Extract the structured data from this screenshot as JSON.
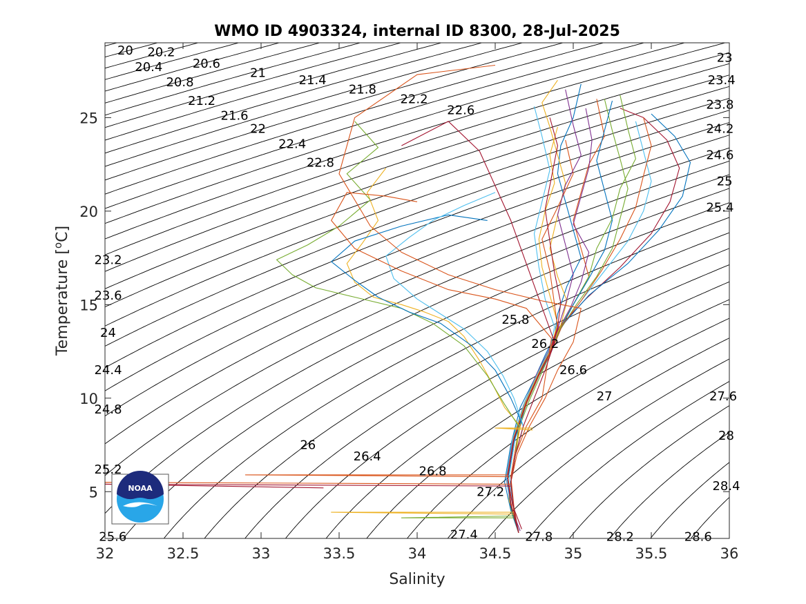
{
  "chart_data": {
    "type": "line",
    "title": "WMO ID 4903324, internal ID 8300, 28-Jul-2025",
    "xlabel": "Salinity",
    "ylabel": "Temperature [",
    "ylabel_sup": "o",
    "ylabel_suffix": "C]",
    "xlim": [
      32,
      36
    ],
    "ylim": [
      2.5,
      29
    ],
    "x_ticks": [
      32,
      32.5,
      33,
      33.5,
      34,
      34.5,
      35,
      35.5,
      36
    ],
    "x_tick_labels": [
      "32",
      "32.5",
      "33",
      "33.5",
      "34",
      "34.5",
      "35",
      "35.5",
      "36"
    ],
    "y_ticks": [
      5,
      10,
      15,
      20,
      25
    ],
    "y_tick_labels": [
      "5",
      "10",
      "15",
      "20",
      "25"
    ],
    "grid": false,
    "density_isolines": {
      "range": [
        19.5,
        29.0
      ],
      "step": 0.2,
      "color": "#000000"
    },
    "isoline_labels": [
      {
        "text": "20",
        "S": 32.13,
        "T": 28.6
      },
      {
        "text": "20.2",
        "S": 32.36,
        "T": 28.5
      },
      {
        "text": "20.4",
        "S": 32.28,
        "T": 27.7
      },
      {
        "text": "20.6",
        "S": 32.65,
        "T": 27.9
      },
      {
        "text": "20.8",
        "S": 32.48,
        "T": 26.9
      },
      {
        "text": "21",
        "S": 32.98,
        "T": 27.4
      },
      {
        "text": "21.2",
        "S": 32.62,
        "T": 25.9
      },
      {
        "text": "21.4",
        "S": 33.33,
        "T": 27.0
      },
      {
        "text": "21.6",
        "S": 32.83,
        "T": 25.1
      },
      {
        "text": "21.8",
        "S": 33.65,
        "T": 26.5
      },
      {
        "text": "22",
        "S": 32.98,
        "T": 24.4
      },
      {
        "text": "22.2",
        "S": 33.98,
        "T": 26.0
      },
      {
        "text": "22.4",
        "S": 33.2,
        "T": 23.6
      },
      {
        "text": "22.6",
        "S": 34.28,
        "T": 25.4
      },
      {
        "text": "22.8",
        "S": 33.38,
        "T": 22.6
      },
      {
        "text": "23",
        "S": 35.97,
        "T": 28.2
      },
      {
        "text": "23.2",
        "S": 32.02,
        "T": 17.4
      },
      {
        "text": "23.4",
        "S": 35.95,
        "T": 27.0
      },
      {
        "text": "23.6",
        "S": 32.02,
        "T": 15.5
      },
      {
        "text": "23.8",
        "S": 35.94,
        "T": 25.7
      },
      {
        "text": "24",
        "S": 32.02,
        "T": 13.5
      },
      {
        "text": "24.2",
        "S": 35.94,
        "T": 24.4
      },
      {
        "text": "24.4",
        "S": 32.02,
        "T": 11.5
      },
      {
        "text": "24.6",
        "S": 35.94,
        "T": 23.0
      },
      {
        "text": "24.8",
        "S": 32.02,
        "T": 9.4
      },
      {
        "text": "25",
        "S": 35.97,
        "T": 21.6
      },
      {
        "text": "25.2",
        "S": 32.02,
        "T": 6.2
      },
      {
        "text": "25.4",
        "S": 35.94,
        "T": 20.2
      },
      {
        "text": "25.6",
        "S": 32.05,
        "T": 2.6
      },
      {
        "text": "25.8",
        "S": 34.63,
        "T": 14.2
      },
      {
        "text": "26",
        "S": 33.3,
        "T": 7.5
      },
      {
        "text": "26.2",
        "S": 34.82,
        "T": 12.9
      },
      {
        "text": "26.4",
        "S": 33.68,
        "T": 6.9
      },
      {
        "text": "26.6",
        "S": 35.0,
        "T": 11.5
      },
      {
        "text": "26.8",
        "S": 34.1,
        "T": 6.1
      },
      {
        "text": "27",
        "S": 35.2,
        "T": 10.1
      },
      {
        "text": "27.2",
        "S": 34.47,
        "T": 5.0
      },
      {
        "text": "27.4",
        "S": 34.3,
        "T": 2.7
      },
      {
        "text": "27.6",
        "S": 35.96,
        "T": 10.1
      },
      {
        "text": "27.8",
        "S": 34.78,
        "T": 2.6
      },
      {
        "text": "28",
        "S": 35.98,
        "T": 8.0
      },
      {
        "text": "28.2",
        "S": 35.3,
        "T": 2.6
      },
      {
        "text": "28.4",
        "S": 35.98,
        "T": 5.3
      },
      {
        "text": "28.6",
        "S": 35.8,
        "T": 2.6
      }
    ],
    "series": [
      {
        "color": "#0072BD",
        "S": [
          34.65,
          34.6,
          34.56,
          34.6,
          34.66,
          34.75,
          34.82,
          34.88,
          34.9,
          34.96,
          35.05,
          35.0,
          34.95,
          34.9,
          34.92,
          35.0,
          35.05
        ],
        "T": [
          2.8,
          4.0,
          5.5,
          7.5,
          9.5,
          11.0,
          12.3,
          13.3,
          14.5,
          16.0,
          17.5,
          19.0,
          20.5,
          22.0,
          23.5,
          25.0,
          26.8
        ]
      },
      {
        "color": "#D95319",
        "S": [
          34.65,
          34.62,
          34.6,
          34.64,
          34.7,
          34.78,
          34.85,
          34.92,
          35.0,
          35.1,
          35.05,
          35.0,
          35.05,
          35.1,
          35.2,
          35.15
        ],
        "T": [
          2.8,
          4.2,
          5.8,
          7.8,
          9.8,
          11.3,
          12.6,
          13.8,
          15.0,
          16.5,
          18.0,
          19.5,
          21.0,
          22.5,
          24.0,
          26.0
        ]
      },
      {
        "color": "#EDB120",
        "S": [
          34.65,
          34.59,
          34.58,
          34.62,
          34.7,
          34.8,
          34.86,
          34.9,
          34.85,
          34.8,
          34.78,
          34.82,
          34.88,
          34.85,
          34.9
        ],
        "T": [
          2.8,
          4.5,
          6.0,
          8.0,
          10.0,
          11.5,
          12.8,
          14.0,
          15.5,
          17.0,
          18.5,
          20.0,
          21.5,
          23.0,
          24.5
        ]
      },
      {
        "color": "#7E2F8E",
        "S": [
          34.65,
          34.6,
          34.57,
          34.61,
          34.68,
          34.76,
          34.84,
          34.9,
          34.98,
          35.05,
          35.1,
          35.0,
          35.05,
          35.1,
          35.12,
          35.08
        ],
        "T": [
          2.9,
          4.3,
          5.7,
          7.6,
          9.6,
          11.2,
          12.5,
          13.6,
          14.8,
          16.2,
          17.8,
          19.3,
          20.8,
          22.3,
          23.8,
          25.5
        ]
      },
      {
        "color": "#77AC30",
        "S": [
          34.65,
          34.6,
          34.58,
          34.62,
          34.72,
          34.8,
          34.87,
          34.92,
          35.02,
          35.15,
          35.25,
          35.3,
          35.35,
          35.3,
          35.25,
          35.2
        ],
        "T": [
          2.8,
          4.1,
          5.6,
          7.7,
          9.9,
          11.4,
          12.7,
          13.7,
          15.0,
          16.5,
          18.0,
          19.6,
          21.2,
          22.8,
          24.3,
          26.0
        ]
      },
      {
        "color": "#4DBEEE",
        "S": [
          34.65,
          34.61,
          34.59,
          34.63,
          34.71,
          34.79,
          34.86,
          34.93,
          35.05,
          35.2,
          35.35,
          35.45,
          35.5,
          35.45,
          35.4
        ],
        "T": [
          2.8,
          4.4,
          5.9,
          7.9,
          9.9,
          11.4,
          12.7,
          13.9,
          15.2,
          16.8,
          18.4,
          20.0,
          21.6,
          23.2,
          24.8
        ]
      },
      {
        "color": "#A2142F",
        "S": [
          34.67,
          34.61,
          34.58,
          34.62,
          34.69,
          34.77,
          34.85,
          34.91,
          35.08,
          35.3,
          35.5,
          35.62,
          35.68,
          35.6,
          35.45,
          35.3
        ],
        "T": [
          3.0,
          4.3,
          5.8,
          7.8,
          9.8,
          11.3,
          12.6,
          13.8,
          15.3,
          17.0,
          18.8,
          20.5,
          22.3,
          23.8,
          25.0,
          25.5
        ]
      },
      {
        "color": "#0072BD",
        "S": [
          34.65,
          34.6,
          34.58,
          34.62,
          34.7,
          34.78,
          34.86,
          34.92,
          35.1,
          35.35,
          35.55,
          35.7,
          35.75,
          35.65,
          35.5
        ],
        "T": [
          2.8,
          4.2,
          5.7,
          7.7,
          9.7,
          11.2,
          12.6,
          13.8,
          15.5,
          17.2,
          19.0,
          20.8,
          22.6,
          24.0,
          25.2
        ]
      },
      {
        "color": "#D95319",
        "S": [
          34.65,
          34.6,
          34.57,
          34.61,
          34.69,
          34.77,
          34.85,
          34.9,
          34.88,
          34.85,
          34.8,
          34.9,
          35.0,
          34.95
        ],
        "T": [
          2.8,
          4.3,
          5.8,
          7.8,
          9.8,
          11.3,
          12.6,
          13.8,
          15.0,
          16.8,
          18.5,
          20.2,
          22.0,
          23.8
        ]
      },
      {
        "color": "#EDB120",
        "S": [
          34.65,
          34.6,
          34.58,
          34.62,
          34.7,
          34.78,
          34.86,
          34.92,
          34.96,
          34.9,
          34.85,
          34.9,
          34.95,
          34.9,
          34.85,
          34.8,
          34.9
        ],
        "T": [
          2.8,
          4.4,
          5.9,
          7.9,
          9.9,
          11.4,
          12.7,
          13.9,
          15.2,
          16.5,
          18.0,
          19.8,
          21.5,
          23.0,
          24.5,
          25.8,
          27.0
        ]
      },
      {
        "color": "#77AC30",
        "S": [
          34.65,
          34.6,
          34.58,
          34.62,
          34.7,
          34.78,
          34.86,
          34.92,
          35.0,
          35.1,
          35.15,
          35.25,
          35.3,
          35.4,
          35.35,
          35.3
        ],
        "T": [
          2.8,
          4.3,
          5.8,
          7.8,
          9.8,
          11.3,
          12.6,
          13.8,
          15.0,
          16.5,
          18.0,
          19.6,
          21.2,
          22.8,
          24.4,
          26.2
        ]
      },
      {
        "color": "#7E2F8E",
        "S": [
          34.66,
          34.6,
          34.58,
          34.62,
          34.7,
          34.78,
          34.86,
          34.9,
          34.95,
          35.0,
          34.95,
          34.9,
          34.95,
          35.05,
          35.0,
          34.95
        ],
        "T": [
          2.9,
          4.2,
          5.7,
          7.7,
          9.7,
          11.2,
          12.5,
          13.7,
          15.0,
          16.6,
          18.2,
          19.8,
          21.4,
          23.0,
          24.6,
          26.5
        ]
      },
      {
        "color": "#4DBEEE",
        "S": [
          34.65,
          34.6,
          34.57,
          34.61,
          34.69,
          34.77,
          34.85,
          34.88,
          34.82,
          34.78,
          34.75,
          34.8,
          34.85,
          34.8,
          34.75
        ],
        "T": [
          2.8,
          4.3,
          5.8,
          7.8,
          9.8,
          11.3,
          12.6,
          13.8,
          15.3,
          17.0,
          18.8,
          20.5,
          22.2,
          24.0,
          25.6
        ]
      },
      {
        "color": "#0072BD",
        "S": [
          34.65,
          34.6,
          34.58,
          34.62,
          34.7,
          34.78,
          34.86,
          34.92,
          35.0,
          35.1,
          35.2,
          35.25,
          35.2,
          35.15,
          35.2,
          35.25
        ],
        "T": [
          2.8,
          4.2,
          5.7,
          7.7,
          9.7,
          11.2,
          12.5,
          13.7,
          15.0,
          16.4,
          17.9,
          19.5,
          21.1,
          22.7,
          24.3,
          25.9
        ]
      },
      {
        "color": "#D95319",
        "S": [
          34.65,
          34.6,
          34.58,
          34.62,
          34.71,
          34.79,
          34.87,
          34.93,
          35.05,
          35.18,
          35.3,
          35.4,
          35.45,
          35.5,
          35.45
        ],
        "T": [
          2.8,
          4.4,
          5.9,
          7.9,
          9.9,
          11.4,
          12.7,
          13.9,
          15.2,
          16.8,
          18.5,
          20.2,
          21.9,
          23.5,
          25.0
        ]
      },
      {
        "color": "#A2142F",
        "S": [
          34.65,
          34.6,
          34.58,
          34.62,
          34.7,
          34.78,
          34.86,
          34.9,
          34.92,
          34.88,
          34.85,
          34.82,
          34.86,
          34.9,
          34.85
        ],
        "T": [
          2.8,
          4.3,
          5.8,
          7.8,
          9.8,
          11.3,
          12.6,
          13.8,
          15.1,
          16.7,
          18.4,
          20.1,
          21.8,
          23.5,
          25.0
        ]
      },
      {
        "color": "#EDB120",
        "S": [
          34.65,
          34.62,
          34.6,
          34.63,
          34.66,
          34.56,
          34.48,
          34.4,
          34.3,
          34.2,
          34.05,
          33.9,
          33.72,
          33.6,
          33.55,
          33.65,
          33.75,
          33.68,
          33.8
        ],
        "T": [
          2.8,
          4.0,
          5.5,
          7.0,
          8.5,
          9.5,
          10.8,
          12.0,
          13.3,
          14.1,
          14.6,
          15.0,
          15.4,
          16.2,
          17.2,
          18.3,
          19.5,
          21.0,
          22.3
        ]
      },
      {
        "color": "#77AC30",
        "S": [
          34.65,
          34.62,
          34.6,
          34.63,
          34.65,
          34.55,
          34.45,
          34.3,
          34.1,
          33.9,
          33.6,
          33.35,
          33.2,
          33.1,
          33.3,
          33.5,
          33.7,
          33.55,
          33.75,
          33.6
        ],
        "T": [
          2.8,
          4.0,
          5.5,
          7.0,
          8.5,
          9.8,
          11.2,
          12.8,
          14.0,
          14.8,
          15.4,
          15.9,
          16.6,
          17.4,
          18.2,
          19.2,
          20.6,
          22.0,
          23.4,
          24.8
        ]
      },
      {
        "color": "#0072BD",
        "S": [
          34.65,
          34.62,
          34.6,
          34.63,
          34.68,
          34.6,
          34.5,
          34.35,
          34.15,
          33.95,
          33.75,
          33.6,
          33.45,
          33.6,
          33.9,
          34.2,
          34.45
        ],
        "T": [
          2.8,
          4.0,
          5.5,
          7.0,
          8.5,
          10.0,
          11.5,
          12.8,
          14.0,
          14.6,
          15.4,
          16.3,
          17.3,
          18.4,
          19.2,
          19.8,
          19.5
        ]
      },
      {
        "color": "#4DBEEE",
        "S": [
          34.65,
          34.62,
          34.6,
          34.63,
          34.68,
          34.62,
          34.55,
          34.45,
          34.3,
          34.15,
          34.0,
          33.85,
          33.8,
          33.95,
          34.1,
          34.3,
          34.5
        ],
        "T": [
          2.8,
          4.0,
          5.5,
          7.0,
          8.5,
          10.0,
          11.2,
          12.5,
          13.7,
          14.5,
          15.3,
          16.4,
          17.6,
          18.6,
          19.5,
          20.3,
          21.0
        ]
      },
      {
        "color": "#D95319",
        "S": [
          34.65,
          34.62,
          34.6,
          34.63,
          34.7,
          34.8,
          34.86,
          34.7,
          34.5,
          34.2,
          33.9,
          33.6,
          33.45,
          33.55,
          33.8,
          34.0
        ],
        "T": [
          2.8,
          4.0,
          5.5,
          7.0,
          8.5,
          10.0,
          13.2,
          14.8,
          15.3,
          15.8,
          16.8,
          18.0,
          19.5,
          21.0,
          20.8,
          20.5
        ]
      },
      {
        "color": "#D95319",
        "S": [
          34.65,
          34.62,
          34.6,
          34.64,
          34.72,
          34.82,
          34.9,
          35.0,
          35.05,
          34.8,
          34.5,
          34.2,
          33.9,
          33.7,
          33.5,
          33.6,
          34.0,
          34.5
        ],
        "T": [
          2.8,
          4.0,
          5.5,
          7.0,
          8.5,
          10.0,
          11.5,
          13.0,
          14.8,
          15.2,
          15.8,
          16.6,
          17.8,
          19.2,
          22.0,
          25.0,
          27.3,
          27.8
        ]
      },
      {
        "color": "#A2142F",
        "S": [
          34.65,
          34.62,
          34.6,
          34.63,
          34.68,
          34.75,
          34.82,
          34.88,
          34.6,
          34.4,
          34.2,
          33.9
        ],
        "T": [
          2.8,
          4.0,
          5.5,
          7.0,
          8.5,
          10.0,
          11.5,
          13.0,
          19.5,
          23.2,
          24.8,
          23.5
        ]
      },
      {
        "color": "#D95319",
        "S": [
          34.6,
          32.0,
          32.0
        ],
        "T": [
          5.4,
          5.5,
          5.4
        ]
      },
      {
        "color": "#D95319",
        "S": [
          34.58,
          32.9,
          34.58
        ],
        "T": [
          5.9,
          5.9,
          5.8
        ]
      },
      {
        "color": "#A2142F",
        "S": [
          34.6,
          32.0,
          33.4
        ],
        "T": [
          5.3,
          5.4,
          5.2
        ]
      },
      {
        "color": "#EDB120",
        "S": [
          34.62,
          33.45,
          34.62
        ],
        "T": [
          3.9,
          3.9,
          3.8
        ]
      },
      {
        "color": "#77AC30",
        "S": [
          34.62,
          33.9,
          34.62
        ],
        "T": [
          3.6,
          3.6,
          3.7
        ]
      },
      {
        "color": "#EDB120",
        "S": [
          34.74,
          34.5,
          34.74
        ],
        "T": [
          8.4,
          8.4,
          8.3
        ]
      }
    ]
  }
}
